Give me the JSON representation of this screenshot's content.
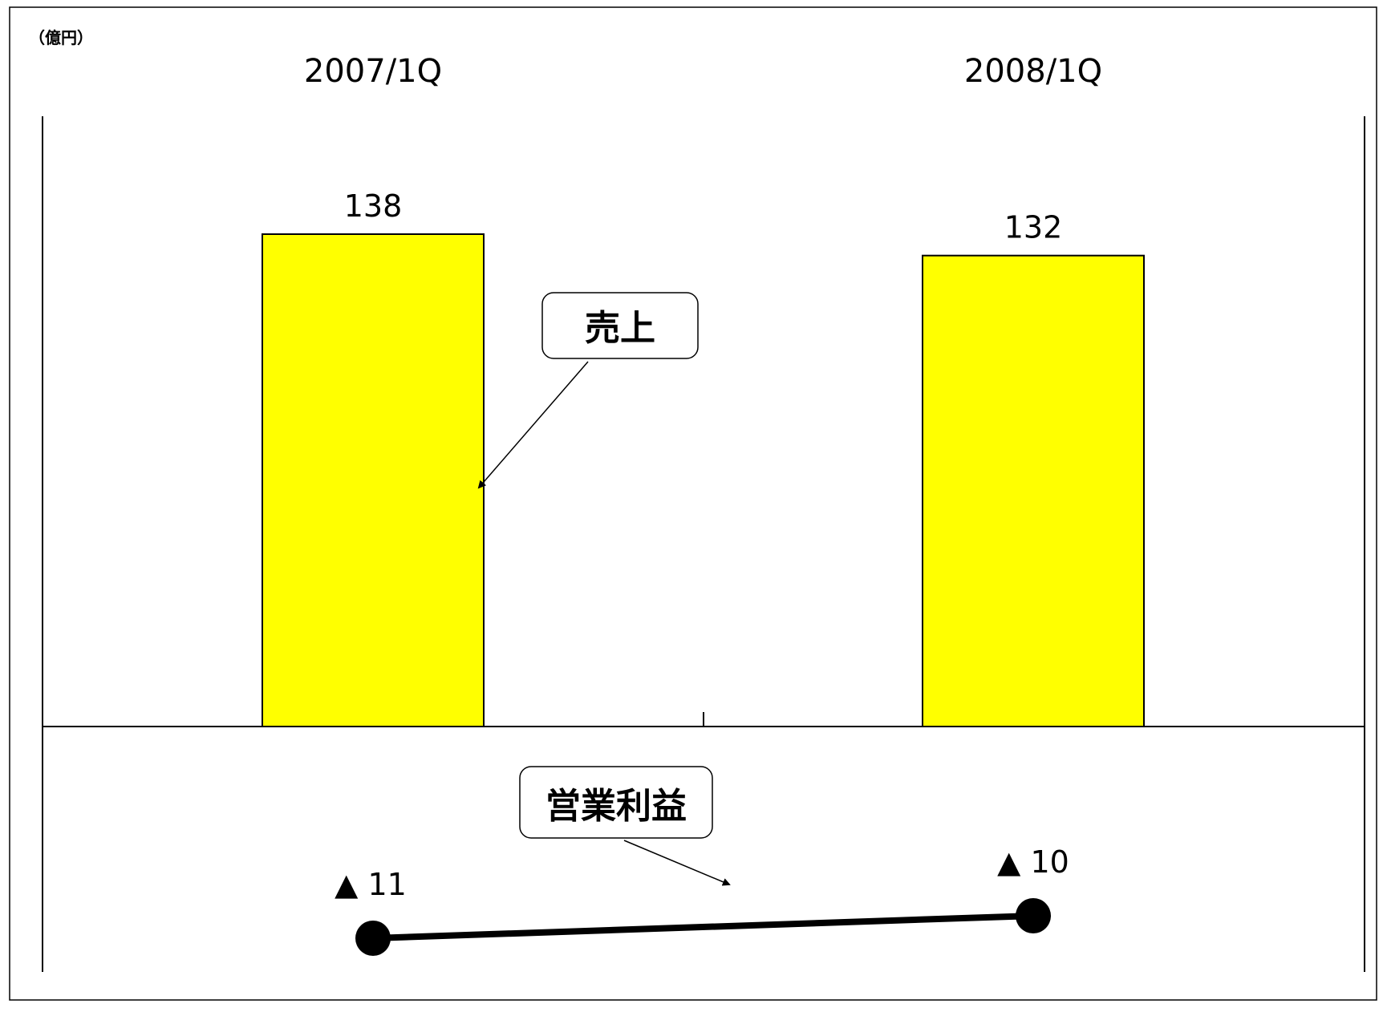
{
  "chart_data": {
    "type": "bar",
    "unit_label": "（億円）",
    "categories": [
      "2007/1Q",
      "2008/1Q"
    ],
    "series": [
      {
        "name": "売上",
        "type": "bar",
        "values": [
          138,
          132
        ],
        "labels": [
          "138",
          "132"
        ],
        "color": "#FFFF00"
      },
      {
        "name": "営業利益",
        "type": "line",
        "values": [
          -11,
          -10
        ],
        "labels": [
          "▲ 11",
          "▲ 10"
        ],
        "color": "#000000"
      }
    ]
  }
}
